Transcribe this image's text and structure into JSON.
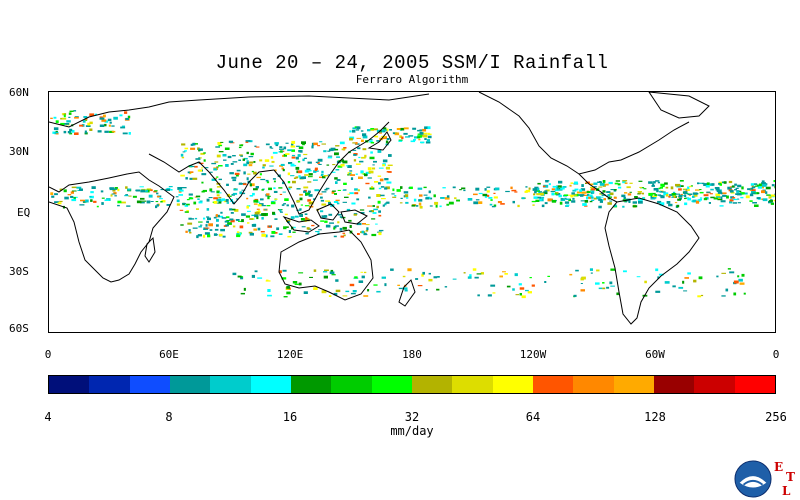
{
  "title": "June 20 – 24, 2005 SSM/I Rainfall",
  "subtitle": "Ferraro Algorithm",
  "lat_labels": [
    "60N",
    "30N",
    "EQ",
    "30S",
    "60S"
  ],
  "lon_labels": [
    "0",
    "60E",
    "120E",
    "180",
    "120W",
    "60W",
    "0"
  ],
  "colorbar": {
    "colors": [
      "#000f7a",
      "#0026b0",
      "#0f4dff",
      "#009999",
      "#00cccc",
      "#00ffff",
      "#009900",
      "#00cc00",
      "#00ff00",
      "#b3b300",
      "#dddd00",
      "#ffff00",
      "#ff5500",
      "#ff8800",
      "#ffaa00",
      "#990000",
      "#cc0000",
      "#ff0000"
    ],
    "labels": [
      "4",
      "8",
      "16",
      "32",
      "64",
      "128",
      "256"
    ],
    "units": "mm/day"
  },
  "logo": {
    "name": "noaa-logo",
    "letters": [
      "E",
      "T",
      "L"
    ]
  }
}
